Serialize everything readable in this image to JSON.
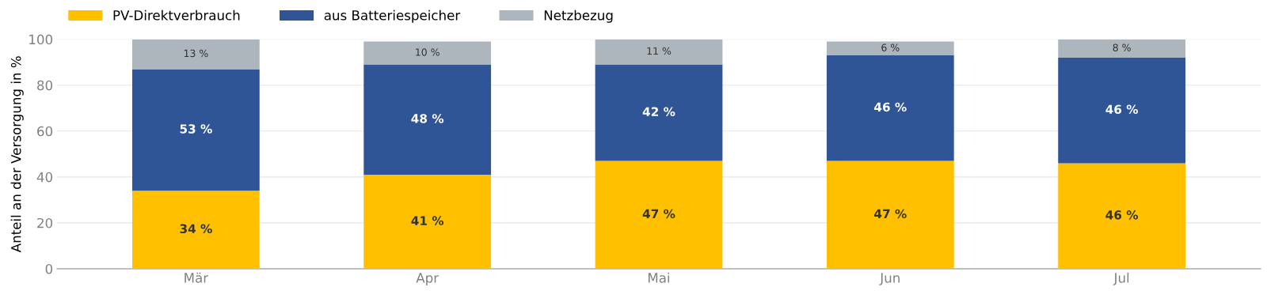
{
  "chart_data": {
    "type": "bar",
    "stacked": true,
    "ylabel": "Anteil an der Versorgung in %",
    "categories": [
      "Mär",
      "Apr",
      "Mai",
      "Jun",
      "Jul"
    ],
    "series": [
      {
        "name": "PV-Direktverbrauch",
        "color": "#ffc000",
        "values": [
          34,
          41,
          47,
          47,
          46
        ],
        "value_labels": [
          "34 %",
          "41 %",
          "47 %",
          "47 %",
          "46 %"
        ]
      },
      {
        "name": "aus Batteriespeicher",
        "color": "#2f5597",
        "values": [
          53,
          48,
          42,
          46,
          46
        ],
        "value_labels": [
          "53 %",
          "48 %",
          "42 %",
          "46 %",
          "46 %"
        ]
      },
      {
        "name": "Netzbezug",
        "color": "#adb5bd",
        "values": [
          13,
          10,
          11,
          6,
          8
        ],
        "value_labels": [
          "13 %",
          "10 %",
          "11 %",
          "6 %",
          "8 %"
        ]
      }
    ],
    "ylim": [
      0,
      100
    ],
    "yticks": [
      0,
      20,
      40,
      60,
      80,
      100
    ],
    "grid": "y",
    "legend": "top left"
  }
}
